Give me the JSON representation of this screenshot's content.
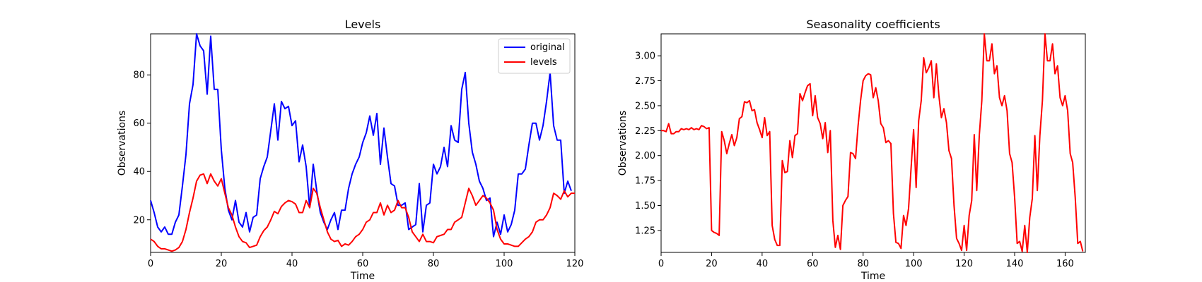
{
  "chart_data": [
    {
      "type": "line",
      "title": "Levels",
      "xlabel": "Time",
      "ylabel": "Observations",
      "xlim": [
        0,
        120
      ],
      "ylim": [
        6.5,
        97
      ],
      "xticks": [
        0,
        20,
        40,
        60,
        80,
        100,
        120
      ],
      "yticks": [
        20,
        40,
        60,
        80
      ],
      "xtick_labels": [
        "0",
        "20",
        "40",
        "60",
        "80",
        "100",
        "120"
      ],
      "ytick_labels": [
        "20",
        "40",
        "60",
        "80"
      ],
      "legend": "top-right",
      "grid": false,
      "series": [
        {
          "name": "original",
          "color": "#0000ff",
          "values": [
            28,
            23,
            17,
            15,
            17,
            14,
            14,
            19,
            22,
            34,
            47,
            68,
            76,
            97,
            92,
            90,
            72,
            96,
            74,
            74,
            49,
            33,
            24,
            20,
            28,
            19,
            17,
            23,
            15,
            21,
            22,
            37,
            42,
            46,
            57,
            68,
            53,
            69,
            66,
            67,
            59,
            61,
            44,
            51,
            42,
            25,
            43,
            32,
            23,
            19,
            16,
            20,
            23,
            16,
            24,
            24,
            33,
            39,
            43,
            46,
            52,
            56,
            63,
            55,
            64,
            43,
            58,
            46,
            35,
            34,
            26,
            26,
            27,
            16,
            17,
            18,
            35,
            15,
            26,
            27,
            43,
            39,
            42,
            50,
            42,
            59,
            53,
            52,
            74,
            81,
            60,
            48,
            43,
            36,
            33,
            28,
            29,
            13,
            19,
            14,
            22,
            15,
            18,
            24,
            39,
            39,
            41,
            51,
            60,
            60,
            53,
            59,
            69,
            81,
            59,
            53,
            53,
            31,
            36,
            32
          ]
        },
        {
          "name": "levels",
          "color": "#ff0000",
          "values": [
            12,
            11,
            9,
            8,
            8,
            7.5,
            7,
            7.5,
            8.5,
            11,
            16,
            23,
            29,
            36,
            38.5,
            39,
            35,
            39,
            36,
            34,
            37,
            31,
            25,
            22,
            17,
            13,
            11,
            10.5,
            8.5,
            9,
            9.5,
            13,
            15.5,
            17,
            20,
            23.5,
            22.5,
            25.5,
            27,
            28,
            27.5,
            26.5,
            23,
            23,
            28,
            25,
            33,
            31,
            25,
            20,
            15,
            12,
            11,
            11.5,
            9,
            10,
            9.5,
            11,
            13,
            14,
            16,
            19,
            20,
            23,
            23,
            27,
            22,
            26,
            23,
            24,
            28,
            25,
            25,
            21,
            15,
            13,
            11,
            14,
            11,
            11,
            10.5,
            13,
            13.5,
            14,
            16,
            16,
            19,
            20,
            21,
            27,
            33,
            30,
            26,
            28,
            30,
            29,
            27,
            24,
            16,
            12,
            10,
            10,
            9.5,
            9,
            9,
            10.5,
            12,
            13,
            15,
            19,
            20,
            20,
            22,
            25,
            31,
            30,
            28.5,
            32,
            29.5,
            31,
            31
          ]
        }
      ]
    },
    {
      "type": "line",
      "title": "Seasonality coefficients",
      "xlabel": "Time",
      "ylabel": "Observations",
      "xlim": [
        0,
        168
      ],
      "ylim": [
        1.03,
        3.22
      ],
      "xticks": [
        0,
        20,
        40,
        60,
        80,
        100,
        120,
        140,
        160
      ],
      "yticks": [
        1.25,
        1.5,
        1.75,
        2.0,
        2.25,
        2.5,
        2.75,
        3.0
      ],
      "xtick_labels": [
        "0",
        "20",
        "40",
        "60",
        "80",
        "100",
        "120",
        "140",
        "160"
      ],
      "ytick_labels": [
        "1.25",
        "1.50",
        "1.75",
        "2.00",
        "2.25",
        "2.50",
        "2.75",
        "3.00"
      ],
      "grid": false,
      "series": [
        {
          "color": "#ff0000",
          "points": [
            [
              0,
              2.25
            ],
            [
              1,
              2.25
            ],
            [
              2,
              2.24
            ],
            [
              3,
              2.32
            ],
            [
              4,
              2.22
            ],
            [
              5,
              2.22
            ],
            [
              6,
              2.24
            ],
            [
              7,
              2.24
            ],
            [
              8,
              2.27
            ],
            [
              9,
              2.26
            ],
            [
              10,
              2.27
            ],
            [
              11,
              2.26
            ],
            [
              12,
              2.28
            ],
            [
              13,
              2.26
            ],
            [
              14,
              2.27
            ],
            [
              15,
              2.26
            ],
            [
              16,
              2.3
            ],
            [
              17,
              2.29
            ],
            [
              18,
              2.27
            ],
            [
              19,
              2.28
            ],
            [
              20,
              1.25
            ],
            [
              21,
              1.23
            ],
            [
              22,
              1.22
            ],
            [
              23,
              1.2
            ],
            [
              24,
              2.24
            ],
            [
              25,
              2.15
            ],
            [
              26,
              2.02
            ],
            [
              27,
              2.12
            ],
            [
              28,
              2.21
            ],
            [
              29,
              2.1
            ],
            [
              30,
              2.18
            ],
            [
              31,
              2.37
            ],
            [
              32,
              2.39
            ],
            [
              33,
              2.54
            ],
            [
              34,
              2.53
            ],
            [
              35,
              2.55
            ],
            [
              36,
              2.45
            ],
            [
              37,
              2.46
            ],
            [
              38,
              2.33
            ],
            [
              39,
              2.26
            ],
            [
              40,
              2.18
            ],
            [
              41,
              2.38
            ],
            [
              42,
              2.2
            ],
            [
              43,
              2.24
            ],
            [
              44,
              1.3
            ],
            [
              45,
              1.16
            ],
            [
              46,
              1.1
            ],
            [
              47,
              1.1
            ],
            [
              48,
              1.95
            ],
            [
              49,
              1.83
            ],
            [
              50,
              1.84
            ],
            [
              51,
              2.15
            ],
            [
              52,
              1.98
            ],
            [
              53,
              2.2
            ],
            [
              54,
              2.22
            ],
            [
              55,
              2.62
            ],
            [
              56,
              2.55
            ],
            [
              57,
              2.63
            ],
            [
              58,
              2.7
            ],
            [
              59,
              2.72
            ],
            [
              60,
              2.4
            ],
            [
              61,
              2.6
            ],
            [
              62,
              2.38
            ],
            [
              63,
              2.32
            ],
            [
              64,
              2.17
            ],
            [
              65,
              2.33
            ],
            [
              66,
              2.03
            ],
            [
              67,
              2.25
            ],
            [
              68,
              1.35
            ],
            [
              69,
              1.08
            ],
            [
              70,
              1.2
            ],
            [
              71,
              1.06
            ],
            [
              72,
              1.5
            ],
            [
              73,
              1.55
            ],
            [
              74,
              1.59
            ],
            [
              75,
              2.03
            ],
            [
              76,
              2.02
            ],
            [
              77,
              1.97
            ],
            [
              78,
              2.3
            ],
            [
              79,
              2.55
            ],
            [
              80,
              2.75
            ],
            [
              81,
              2.8
            ],
            [
              82,
              2.82
            ],
            [
              83,
              2.81
            ],
            [
              84,
              2.58
            ],
            [
              85,
              2.68
            ],
            [
              86,
              2.55
            ],
            [
              87,
              2.32
            ],
            [
              88,
              2.28
            ],
            [
              89,
              2.13
            ],
            [
              90,
              2.15
            ],
            [
              91,
              2.12
            ],
            [
              92,
              1.42
            ],
            [
              93,
              1.13
            ],
            [
              94,
              1.12
            ],
            [
              95,
              1.07
            ],
            [
              96,
              1.4
            ],
            [
              97,
              1.3
            ],
            [
              98,
              1.47
            ],
            [
              99,
              1.88
            ],
            [
              100,
              2.26
            ],
            [
              101,
              1.68
            ],
            [
              102,
              2.35
            ],
            [
              103,
              2.55
            ],
            [
              104,
              2.98
            ],
            [
              105,
              2.83
            ],
            [
              106,
              2.88
            ],
            [
              107,
              2.95
            ],
            [
              108,
              2.58
            ],
            [
              109,
              2.92
            ],
            [
              110,
              2.6
            ],
            [
              111,
              2.38
            ],
            [
              112,
              2.47
            ],
            [
              113,
              2.33
            ],
            [
              114,
              2.05
            ],
            [
              115,
              1.97
            ],
            [
              116,
              1.5
            ],
            [
              117,
              1.17
            ],
            [
              118,
              1.12
            ],
            [
              119,
              1.05
            ],
            [
              120,
              1.3
            ],
            [
              121,
              1.05
            ],
            [
              122,
              1.4
            ],
            [
              123,
              1.55
            ],
            [
              124,
              2.21
            ],
            [
              125,
              1.65
            ],
            [
              126,
              2.2
            ],
            [
              127,
              2.55
            ],
            [
              128,
              3.22
            ],
            [
              129,
              2.95
            ],
            [
              130,
              2.95
            ],
            [
              131,
              3.12
            ],
            [
              132,
              2.82
            ],
            [
              133,
              2.9
            ],
            [
              134,
              2.58
            ],
            [
              135,
              2.5
            ],
            [
              136,
              2.6
            ],
            [
              137,
              2.45
            ],
            [
              138,
              2.02
            ],
            [
              139,
              1.93
            ],
            [
              140,
              1.58
            ],
            [
              141,
              1.12
            ],
            [
              142,
              1.14
            ],
            [
              143,
              1.04
            ],
            [
              144,
              1.3
            ],
            [
              145,
              1.03
            ],
            [
              146,
              1.38
            ],
            [
              147,
              1.57
            ],
            [
              148,
              2.2
            ],
            [
              149,
              1.65
            ],
            [
              150,
              2.2
            ],
            [
              151,
              2.55
            ],
            [
              152,
              3.22
            ],
            [
              153,
              2.95
            ],
            [
              154,
              2.95
            ],
            [
              155,
              3.12
            ],
            [
              156,
              2.82
            ],
            [
              157,
              2.9
            ],
            [
              158,
              2.58
            ],
            [
              159,
              2.5
            ],
            [
              160,
              2.6
            ],
            [
              161,
              2.45
            ],
            [
              162,
              2.02
            ],
            [
              163,
              1.93
            ],
            [
              164,
              1.58
            ],
            [
              165,
              1.12
            ],
            [
              166,
              1.14
            ],
            [
              167,
              1.04
            ]
          ]
        }
      ]
    }
  ]
}
